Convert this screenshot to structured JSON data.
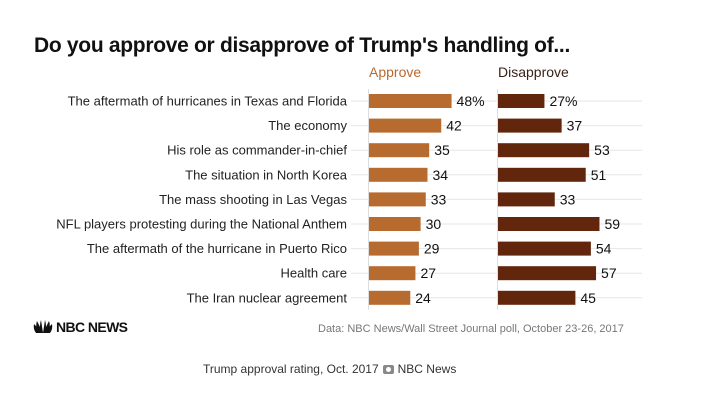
{
  "header": {
    "title": "Do you approve or disapprove of Trump's handling of..."
  },
  "chart_data": {
    "type": "bar",
    "orientation": "horizontal",
    "title": "Do you approve or disapprove of Trump's handling of...",
    "categories": [
      "The aftermath of hurricanes in Texas and Florida",
      "The economy",
      "His role as commander-in-chief",
      "The situation in North Korea",
      "The mass shooting in Las Vegas",
      "NFL players protesting during the National Anthem",
      "The aftermath of the hurricane in Puerto Rico",
      "Health care",
      "The Iran nuclear agreement"
    ],
    "series": [
      {
        "name": "Approve",
        "color": "#b86b2f",
        "values": [
          48,
          42,
          35,
          34,
          33,
          30,
          29,
          27,
          24
        ],
        "labels": [
          "48%",
          "42",
          "35",
          "34",
          "33",
          "30",
          "29",
          "27",
          "24"
        ]
      },
      {
        "name": "Disapprove",
        "color": "#62260d",
        "values": [
          27,
          37,
          53,
          51,
          33,
          59,
          54,
          57,
          45
        ],
        "labels": [
          "27%",
          "37",
          "53",
          "51",
          "33",
          "59",
          "54",
          "57",
          "45"
        ]
      }
    ],
    "unit": "%",
    "xlim": [
      0,
      100
    ],
    "legend": "top",
    "grid": true
  },
  "legend": {
    "approve": "Approve",
    "disapprove": "Disapprove"
  },
  "footer": {
    "logo_text": "NBC NEWS",
    "source": "Data: NBC News/Wall Street Journal poll, October 23-26, 2017",
    "caption": "Trump approval rating, Oct. 2017",
    "credit": "NBC News"
  }
}
